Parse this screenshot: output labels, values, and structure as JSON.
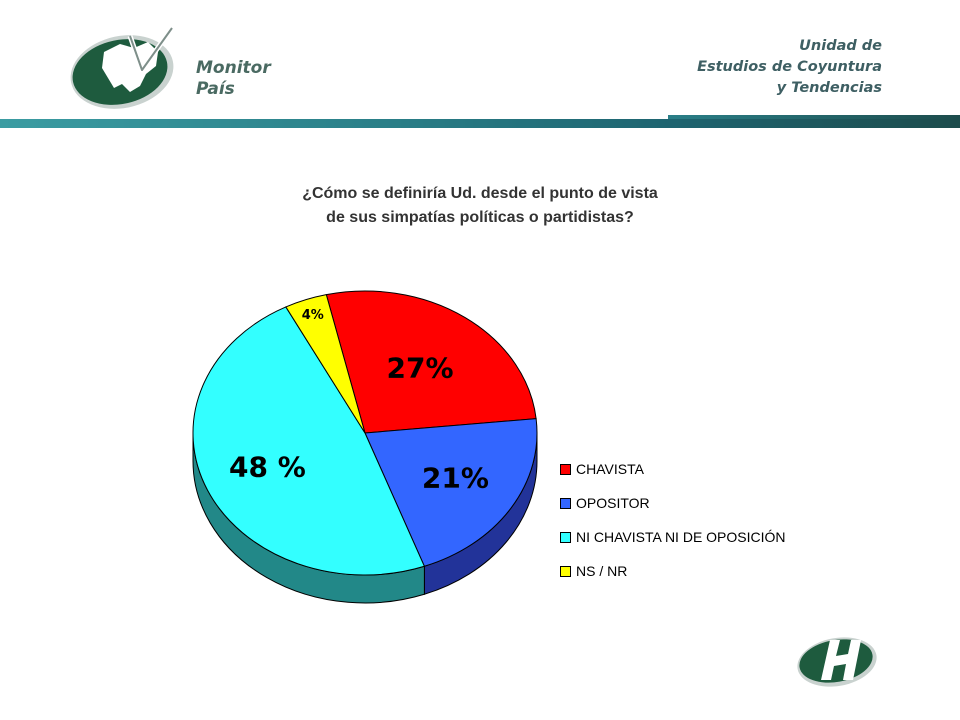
{
  "header": {
    "brand_line1": "Monitor",
    "brand_line2": "País",
    "unit_line1": "Unidad de",
    "unit_line2": "Estudios de Coyuntura",
    "unit_line3": "y Tendencias"
  },
  "colors": {
    "chavista": "#ff0000",
    "opositor": "#3366ff",
    "ni_ni": "#33ffff",
    "ns_nr": "#ffff00",
    "brand_green": "#1e5b3e",
    "band": "#2a7f88"
  },
  "chart_data": {
    "type": "pie",
    "title": "¿Cómo se definiría Ud. desde el punto de vista de sus simpatías políticas o partidistas?",
    "title_lines": [
      "¿Cómo se definiría Ud. desde el punto de vista",
      "de sus simpatías políticas o partidistas?"
    ],
    "slices": [
      {
        "label": "CHAVISTA",
        "value": 27,
        "display": "27%"
      },
      {
        "label": "OPOSITOR",
        "value": 21,
        "display": "21%"
      },
      {
        "label": "NI CHAVISTA NI DE OPOSICIÓN",
        "value": 48,
        "display": "48 %"
      },
      {
        "label": "NS / NR",
        "value": 4,
        "display": "4%"
      }
    ],
    "legend_position": "right"
  }
}
